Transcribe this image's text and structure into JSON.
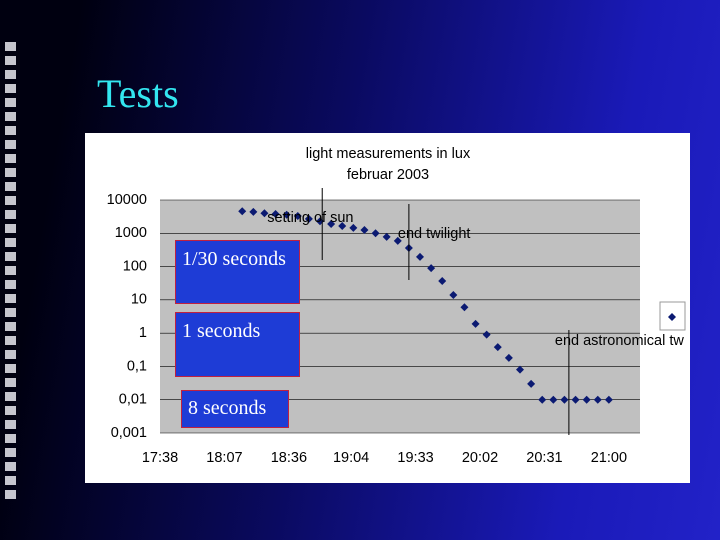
{
  "slide_title": "Tests",
  "overlays": [
    "1/30 seconds",
    "1 seconds",
    "8 seconds"
  ],
  "chart_data": {
    "type": "scatter",
    "title": "light measurements in lux",
    "subtitle": "februar 2003",
    "color": "#0b1a72",
    "x": [
      "18:15",
      "18:20",
      "18:25",
      "18:30",
      "18:35",
      "18:40",
      "18:45",
      "18:50",
      "18:55",
      "19:00",
      "19:05",
      "19:10",
      "19:15",
      "19:20",
      "19:25",
      "19:30",
      "19:35",
      "19:40",
      "19:45",
      "19:50",
      "19:55",
      "20:00",
      "20:05",
      "20:10",
      "20:15",
      "20:20",
      "20:25",
      "20:30",
      "20:35",
      "20:40",
      "20:45",
      "20:50",
      "20:55",
      "21:00"
    ],
    "values": [
      4600,
      4400,
      4000,
      3800,
      3600,
      3300,
      2700,
      2300,
      1900,
      1650,
      1450,
      1250,
      1000,
      780,
      590,
      360,
      195,
      90,
      37,
      14,
      6,
      1.9,
      0.9,
      0.38,
      0.18,
      0.08,
      0.03,
      0.01,
      0.01,
      0.01,
      0.01,
      0.01,
      0.01,
      0.01
    ],
    "xlim": [
      "17:38",
      "21:14"
    ],
    "xticks": [
      "17:38",
      "18:07",
      "18:36",
      "19:04",
      "19:33",
      "20:02",
      "20:31",
      "21:00"
    ],
    "ylim": [
      0.001,
      10000
    ],
    "log_y": true,
    "yticks": [
      10000,
      1000,
      100,
      10,
      1,
      {
        "value": 0.1,
        "label": "0,1"
      },
      {
        "value": 0.01,
        "label": "0,01"
      },
      {
        "value": 0.001,
        "label": "0,001"
      }
    ],
    "grid": true,
    "annotations": [
      {
        "text": "setting of sun",
        "x": "18:51"
      },
      {
        "text": "end twilight",
        "x": "19:30"
      },
      {
        "text": "end astronomical tw",
        "x": "20:42"
      }
    ]
  }
}
